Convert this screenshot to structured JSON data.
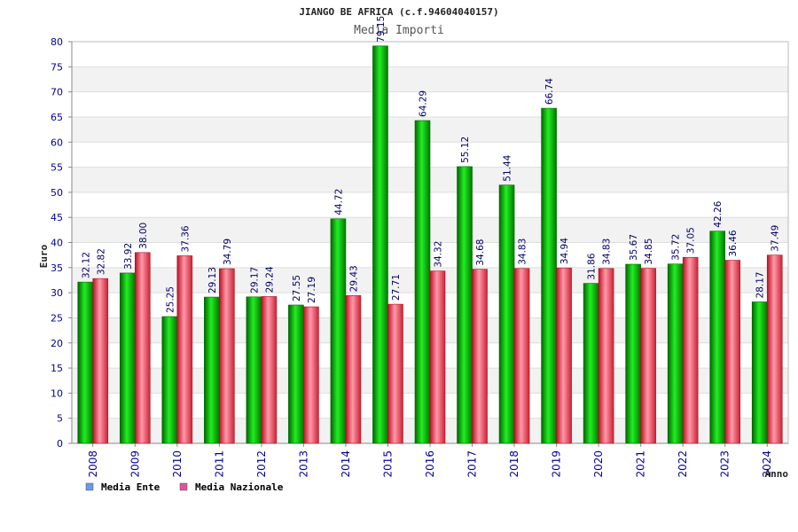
{
  "title": "JIANGO BE AFRICA (c.f.94604040157)",
  "subtitle": "Media Importi",
  "chart_data": {
    "type": "bar",
    "title": "JIANGO BE AFRICA (c.f.94604040157)",
    "subtitle": "Media Importi",
    "xlabel": "Anno",
    "ylabel": "Euro",
    "ylim": [
      0,
      80
    ],
    "yticks": [
      0,
      5,
      10,
      15,
      20,
      25,
      30,
      35,
      40,
      45,
      50,
      55,
      60,
      65,
      70,
      75,
      80
    ],
    "grid": true,
    "legend_position": "bottom-left",
    "categories": [
      "2008",
      "2009",
      "2010",
      "2011",
      "2012",
      "2013",
      "2014",
      "2015",
      "2016",
      "2017",
      "2018",
      "2019",
      "2020",
      "2021",
      "2022",
      "2023",
      "2024"
    ],
    "series": [
      {
        "name": "Media Ente",
        "legend_color": "#6699ee",
        "bar_color": "#00a000",
        "values": [
          32.12,
          33.92,
          25.25,
          29.13,
          29.17,
          27.55,
          44.72,
          79.15,
          64.29,
          55.12,
          51.44,
          66.74,
          31.86,
          35.67,
          35.72,
          42.26,
          28.17
        ],
        "labels": [
          "32.12",
          "33.92",
          "25.25",
          "29.13",
          "29.17",
          "27.55",
          "44.72",
          "79.15",
          "64.29",
          "55.12",
          "51.44",
          "66.74",
          "31.86",
          "35.67",
          "35.72",
          "42.26",
          "28.17"
        ]
      },
      {
        "name": "Media Nazionale",
        "legend_color": "#dd5599",
        "bar_color": "#e03040",
        "values": [
          32.82,
          38.0,
          37.36,
          34.79,
          29.24,
          27.19,
          29.43,
          27.71,
          34.32,
          34.68,
          34.83,
          34.94,
          34.83,
          34.85,
          37.05,
          36.46,
          37.49
        ],
        "labels": [
          "32.82",
          "38.00",
          "37.36",
          "34.79",
          "29.24",
          "27.19",
          "29.43",
          "27.71",
          "34.32",
          "34.68",
          "34.83",
          "34.94",
          "34.83",
          "34.85",
          "37.05",
          "36.46",
          "37.49"
        ]
      }
    ]
  }
}
